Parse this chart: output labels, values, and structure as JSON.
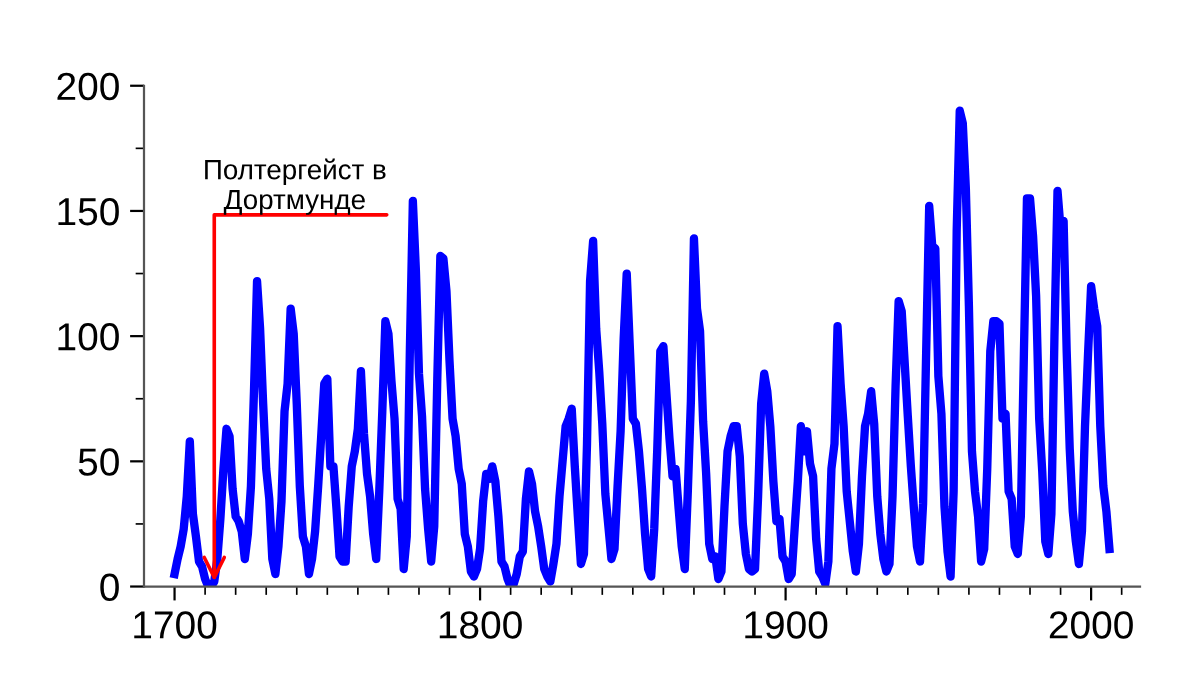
{
  "chart_data": {
    "type": "line",
    "x": [
      1700,
      1701,
      1702,
      1703,
      1704,
      1705,
      1706,
      1707,
      1708,
      1709,
      1710,
      1711,
      1712,
      1713,
      1714,
      1715,
      1716,
      1717,
      1718,
      1719,
      1720,
      1721,
      1722,
      1723,
      1724,
      1725,
      1726,
      1727,
      1728,
      1729,
      1730,
      1731,
      1732,
      1733,
      1734,
      1735,
      1736,
      1737,
      1738,
      1739,
      1740,
      1741,
      1742,
      1743,
      1744,
      1745,
      1746,
      1747,
      1748,
      1749,
      1750,
      1751,
      1752,
      1753,
      1754,
      1755,
      1756,
      1757,
      1758,
      1759,
      1760,
      1761,
      1762,
      1763,
      1764,
      1765,
      1766,
      1767,
      1768,
      1769,
      1770,
      1771,
      1772,
      1773,
      1774,
      1775,
      1776,
      1777,
      1778,
      1779,
      1780,
      1781,
      1782,
      1783,
      1784,
      1785,
      1786,
      1787,
      1788,
      1789,
      1790,
      1791,
      1792,
      1793,
      1794,
      1795,
      1796,
      1797,
      1798,
      1799,
      1800,
      1801,
      1802,
      1803,
      1804,
      1805,
      1806,
      1807,
      1808,
      1809,
      1810,
      1811,
      1812,
      1813,
      1814,
      1815,
      1816,
      1817,
      1818,
      1819,
      1820,
      1821,
      1822,
      1823,
      1824,
      1825,
      1826,
      1827,
      1828,
      1829,
      1830,
      1831,
      1832,
      1833,
      1834,
      1835,
      1836,
      1837,
      1838,
      1839,
      1840,
      1841,
      1842,
      1843,
      1844,
      1845,
      1846,
      1847,
      1848,
      1849,
      1850,
      1851,
      1852,
      1853,
      1854,
      1855,
      1856,
      1857,
      1858,
      1859,
      1860,
      1861,
      1862,
      1863,
      1864,
      1865,
      1866,
      1867,
      1868,
      1869,
      1870,
      1871,
      1872,
      1873,
      1874,
      1875,
      1876,
      1877,
      1878,
      1879,
      1880,
      1881,
      1882,
      1883,
      1884,
      1885,
      1886,
      1887,
      1888,
      1889,
      1890,
      1891,
      1892,
      1893,
      1894,
      1895,
      1896,
      1897,
      1898,
      1899,
      1900,
      1901,
      1902,
      1903,
      1904,
      1905,
      1906,
      1907,
      1908,
      1909,
      1910,
      1911,
      1912,
      1913,
      1914,
      1915,
      1916,
      1917,
      1918,
      1919,
      1920,
      1921,
      1922,
      1923,
      1924,
      1925,
      1926,
      1927,
      1928,
      1929,
      1930,
      1931,
      1932,
      1933,
      1934,
      1935,
      1936,
      1937,
      1938,
      1939,
      1940,
      1941,
      1942,
      1943,
      1944,
      1945,
      1946,
      1947,
      1948,
      1949,
      1950,
      1951,
      1952,
      1953,
      1954,
      1955,
      1956,
      1957,
      1958,
      1959,
      1960,
      1961,
      1962,
      1963,
      1964,
      1965,
      1966,
      1967,
      1968,
      1969,
      1970,
      1971,
      1972,
      1973,
      1974,
      1975,
      1976,
      1977,
      1978,
      1979,
      1980,
      1981,
      1982,
      1983,
      1984,
      1985,
      1986,
      1987,
      1988,
      1989,
      1990,
      1991,
      1992,
      1993,
      1994,
      1995,
      1996,
      1997,
      1998,
      1999,
      2000,
      2001,
      2002,
      2003,
      2004,
      2005,
      2006
    ],
    "series": [
      {
        "color": "#0000ff",
        "values": [
          5,
          11,
          16,
          23,
          36,
          58,
          29,
          20,
          10,
          8,
          3,
          0,
          0,
          2,
          11,
          27,
          47,
          63,
          60,
          39,
          28,
          26,
          22,
          11,
          21,
          40,
          78,
          122,
          103,
          73,
          47,
          35,
          11,
          5,
          16,
          34,
          70,
          81,
          111,
          101,
          73,
          40,
          20,
          16,
          5,
          11,
          22,
          40,
          60,
          81,
          83,
          48,
          48,
          31,
          12,
          10,
          10,
          32,
          48,
          54,
          63,
          86,
          61,
          45,
          36,
          21,
          11,
          38,
          70,
          106,
          101,
          82,
          67,
          35,
          31,
          7,
          20,
          93,
          154,
          126,
          85,
          68,
          39,
          23,
          10,
          24,
          83,
          132,
          131,
          118,
          90,
          67,
          60,
          47,
          41,
          21,
          16,
          6,
          4,
          7,
          15,
          34,
          45,
          43,
          48,
          42,
          28,
          10,
          8,
          3,
          0,
          1,
          5,
          12,
          14,
          35,
          46,
          41,
          30,
          24,
          16,
          7,
          4,
          2,
          9,
          17,
          36,
          50,
          64,
          67,
          71,
          48,
          28,
          9,
          13,
          57,
          122,
          138,
          103,
          86,
          65,
          37,
          24,
          11,
          15,
          40,
          62,
          99,
          125,
          96,
          67,
          65,
          54,
          39,
          21,
          7,
          4,
          23,
          55,
          94,
          96,
          77,
          59,
          44,
          47,
          31,
          16,
          7,
          38,
          74,
          139,
          111,
          102,
          66,
          45,
          17,
          11,
          12,
          3,
          6,
          32,
          54,
          60,
          64,
          64,
          52,
          25,
          13,
          7,
          6,
          7,
          36,
          73,
          85,
          78,
          64,
          42,
          26,
          27,
          12,
          10,
          3,
          5,
          24,
          42,
          64,
          54,
          62,
          49,
          44,
          19,
          6,
          4,
          1,
          10,
          47,
          57,
          104,
          81,
          64,
          38,
          26,
          14,
          6,
          17,
          44,
          64,
          69,
          78,
          65,
          36,
          21,
          11,
          6,
          9,
          36,
          80,
          114,
          110,
          89,
          68,
          48,
          31,
          16,
          10,
          33,
          93,
          152,
          136,
          135,
          84,
          69,
          32,
          14,
          4,
          38,
          142,
          190,
          185,
          159,
          112,
          54,
          38,
          28,
          10,
          15,
          47,
          94,
          106,
          106,
          105,
          67,
          69,
          38,
          35,
          16,
          13,
          28,
          93,
          155,
          155,
          140,
          116,
          67,
          46,
          18,
          13,
          29,
          100,
          158,
          143,
          146,
          94,
          55,
          30,
          18,
          9,
          22,
          64,
          93,
          120,
          111,
          104,
          64,
          40,
          30,
          15
        ]
      }
    ],
    "xlim": [
      1690,
      2016
    ],
    "ylim": [
      0,
      200
    ],
    "xticks": [
      1700,
      1800,
      1900,
      2000
    ],
    "yticks": [
      0,
      50,
      100,
      150,
      200
    ],
    "annotations": [
      {
        "text": "Полтергейст в\nДортмунде",
        "x": 1713,
        "y": 2
      }
    ],
    "grid": false,
    "marker": "none",
    "line_style": "solid"
  }
}
